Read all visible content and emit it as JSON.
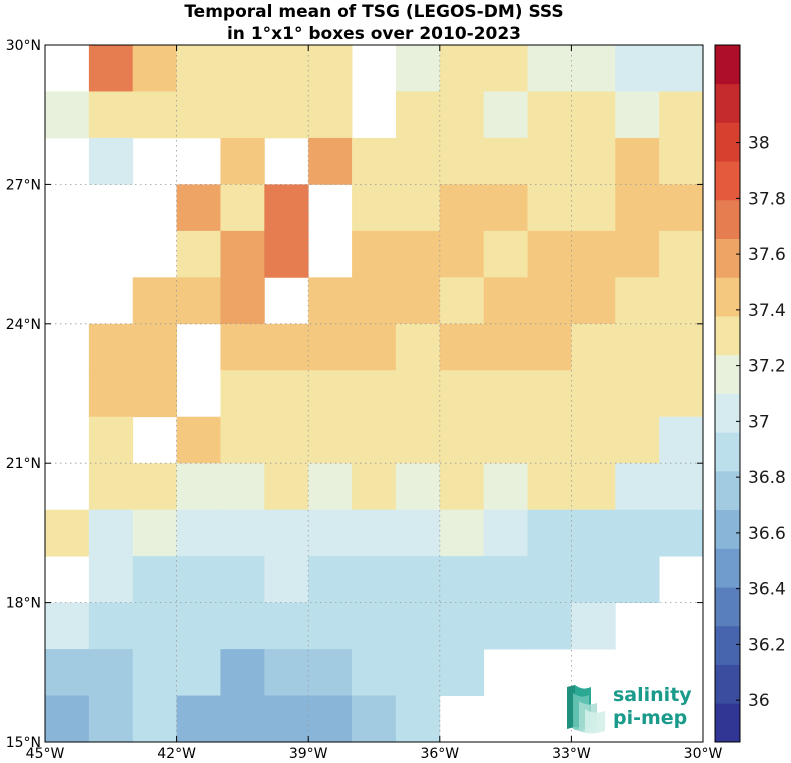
{
  "chart_data": {
    "type": "heatmap",
    "title": [
      "Temporal mean of TSG (LEGOS-DM) SSS",
      "in 1°x1° boxes over 2010-2023"
    ],
    "x_tick_labels": [
      "45°W",
      "42°W",
      "39°W",
      "36°W",
      "33°W",
      "30°W"
    ],
    "x_tick_values": [
      -45,
      -42,
      -39,
      -36,
      -33,
      -30
    ],
    "y_tick_labels": [
      "30°N",
      "27°N",
      "24°N",
      "21°N",
      "18°N",
      "15°N"
    ],
    "y_tick_values": [
      30,
      27,
      24,
      21,
      18,
      15
    ],
    "xlim": [
      -45,
      -30
    ],
    "ylim": [
      15,
      30
    ],
    "grid": true,
    "colorbar": {
      "vmin": 35.85,
      "vmax": 38.35,
      "tick_values": [
        36,
        36.2,
        36.4,
        36.6,
        36.8,
        37,
        37.2,
        37.4,
        37.6,
        37.8,
        38
      ],
      "tick_labels": [
        "36",
        "36.2",
        "36.4",
        "36.6",
        "36.8",
        "37",
        "37.2",
        "37.4",
        "37.6",
        "37.8",
        "38"
      ],
      "colors": [
        "#313695",
        "#3a4d9e",
        "#4665ae",
        "#5a7fbd",
        "#6f9ccd",
        "#89b6d8",
        "#a2cbe2",
        "#bbdfeb",
        "#d5ebef",
        "#e8f1db",
        "#f5e5a5",
        "#f5c880",
        "#eda465",
        "#e57d50",
        "#e45a3c",
        "#d6402f",
        "#c52a2c",
        "#ae0e28"
      ]
    },
    "row_top_latitudes": [
      30,
      29,
      28,
      27,
      26,
      25,
      24,
      23,
      22,
      21,
      20,
      19,
      18,
      17,
      16
    ],
    "column_west_longitudes": [
      -45,
      -44,
      -43,
      -42,
      -41,
      -40,
      -39,
      -38,
      -37,
      -36,
      -35,
      -34,
      -33,
      -32,
      -31
    ],
    "values": [
      [
        null,
        37.75,
        37.45,
        37.25,
        37.25,
        37.35,
        37.35,
        null,
        37.15,
        37.25,
        37.25,
        37.15,
        37.15,
        37.05,
        37.05
      ],
      [
        37.15,
        37.25,
        37.25,
        37.35,
        37.35,
        37.35,
        37.35,
        null,
        37.25,
        37.25,
        37.15,
        37.25,
        37.25,
        37.15,
        37.35
      ],
      [
        null,
        37.05,
        null,
        null,
        37.45,
        null,
        37.65,
        37.25,
        37.25,
        37.35,
        37.35,
        37.35,
        37.25,
        37.45,
        37.35
      ],
      [
        null,
        null,
        null,
        37.65,
        37.25,
        37.75,
        null,
        37.35,
        37.35,
        37.45,
        37.45,
        37.35,
        37.35,
        37.45,
        37.45
      ],
      [
        null,
        null,
        null,
        37.35,
        37.65,
        37.75,
        null,
        37.45,
        37.45,
        37.45,
        37.35,
        37.45,
        37.45,
        37.45,
        37.35
      ],
      [
        null,
        null,
        37.45,
        37.45,
        37.65,
        null,
        37.45,
        37.45,
        37.45,
        37.35,
        37.45,
        37.45,
        37.45,
        37.35,
        37.25
      ],
      [
        null,
        37.45,
        37.45,
        null,
        37.45,
        37.45,
        37.45,
        37.45,
        37.35,
        37.45,
        37.45,
        37.45,
        37.35,
        37.35,
        37.35
      ],
      [
        null,
        37.45,
        37.45,
        null,
        37.35,
        37.35,
        37.35,
        37.35,
        37.35,
        37.35,
        37.25,
        37.35,
        37.35,
        37.35,
        37.35
      ],
      [
        null,
        37.35,
        null,
        37.45,
        37.35,
        37.25,
        37.25,
        37.35,
        37.35,
        37.25,
        37.25,
        37.25,
        37.25,
        37.25,
        37.05
      ],
      [
        null,
        37.35,
        37.35,
        37.15,
        37.15,
        37.35,
        37.15,
        37.35,
        37.15,
        37.25,
        37.15,
        37.25,
        37.25,
        37.05,
        37.05
      ],
      [
        37.25,
        37.05,
        37.15,
        37.05,
        37.05,
        37.05,
        37.05,
        37.05,
        37.05,
        37.15,
        37.05,
        36.85,
        36.95,
        36.85,
        36.95
      ],
      [
        null,
        37.05,
        36.95,
        36.95,
        36.95,
        37.05,
        36.95,
        36.95,
        36.95,
        36.85,
        36.85,
        36.85,
        36.95,
        36.85,
        null
      ],
      [
        37.05,
        36.85,
        36.95,
        36.95,
        36.95,
        36.85,
        36.85,
        36.85,
        36.85,
        36.85,
        36.85,
        36.85,
        37.05,
        null,
        null
      ],
      [
        36.75,
        36.75,
        36.85,
        36.95,
        36.65,
        36.75,
        36.75,
        36.85,
        36.85,
        36.95,
        null,
        null,
        null,
        null,
        null
      ],
      [
        36.65,
        36.75,
        36.85,
        36.55,
        36.65,
        36.55,
        36.65,
        36.75,
        36.85,
        null,
        null,
        null,
        null,
        null,
        null
      ]
    ]
  },
  "logo": {
    "line1": "salinity",
    "line2": "pi-mep",
    "text_color": "#1a9a8a"
  }
}
